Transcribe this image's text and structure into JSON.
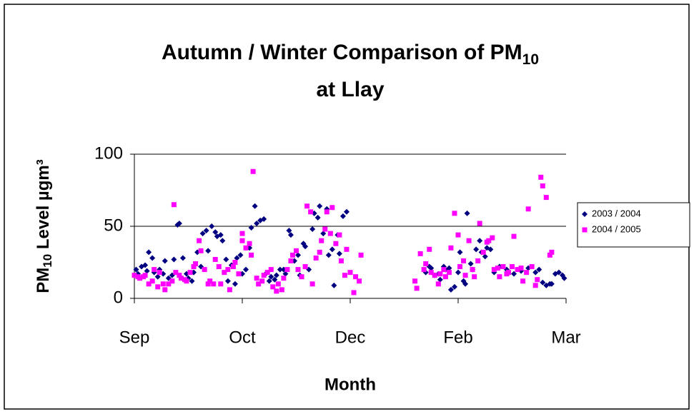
{
  "chart_data": {
    "type": "scatter",
    "title": {
      "text": "Autumn / Winter Comparison of PM",
      "subscript": "10",
      "line2": "at Llay"
    },
    "ylabel": {
      "text": "PM",
      "subscript": "10",
      "rest": " Level µgm³"
    },
    "xlabel": "Month",
    "xlim": [
      0,
      240
    ],
    "xticks": [
      {
        "value": 0,
        "label": "Sep"
      },
      {
        "value": 60,
        "label": "Oct"
      },
      {
        "value": 120,
        "label": "Dec"
      },
      {
        "value": 180,
        "label": "Feb"
      },
      {
        "value": 240,
        "label": "Mar"
      }
    ],
    "ylim": [
      0,
      100
    ],
    "yticks": [
      0,
      50,
      100
    ],
    "grid": true,
    "legend": "right",
    "series": [
      {
        "name": "2003 / 2004",
        "color": "#000080",
        "marker": "diamond",
        "x": [
          1,
          2,
          4,
          6,
          7,
          8,
          10,
          11,
          13,
          14,
          16,
          17,
          19,
          21,
          22,
          24,
          25,
          27,
          29,
          30,
          32,
          33,
          35,
          37,
          38,
          40,
          41,
          43,
          45,
          46,
          48,
          49,
          51,
          52,
          54,
          56,
          57,
          59,
          60,
          62,
          64,
          65,
          67,
          68,
          70,
          72,
          73,
          75,
          76,
          78,
          79,
          81,
          83,
          84,
          86,
          87,
          89,
          91,
          92,
          94,
          95,
          97,
          99,
          100,
          102,
          103,
          105,
          107,
          108,
          110,
          111,
          113,
          114,
          116,
          118,
          162,
          164,
          165,
          167,
          169,
          170,
          172,
          173,
          175,
          176,
          178,
          180,
          181,
          183,
          184,
          185,
          187,
          188,
          190,
          192,
          193,
          195,
          196,
          198,
          200,
          203,
          207,
          211,
          215,
          219,
          223,
          225,
          227,
          229,
          231,
          232,
          234,
          236,
          238,
          239
        ],
        "values": [
          20,
          17,
          22,
          23,
          19,
          32,
          28,
          18,
          15,
          20,
          17,
          26,
          14,
          16,
          27,
          51,
          52,
          28,
          17,
          14,
          12,
          18,
          32,
          22,
          45,
          47,
          33,
          50,
          46,
          43,
          44,
          40,
          27,
          12,
          23,
          10,
          28,
          30,
          17,
          20,
          35,
          49,
          64,
          52,
          54,
          55,
          17,
          12,
          15,
          13,
          16,
          20,
          20,
          17,
          47,
          44,
          26,
          30,
          16,
          38,
          36,
          20,
          48,
          59,
          56,
          64,
          45,
          62,
          30,
          34,
          9,
          44,
          31,
          57,
          60,
          18,
          22,
          21,
          16,
          17,
          13,
          22,
          20,
          21,
          6,
          8,
          18,
          32,
          12,
          10,
          59,
          24,
          20,
          34,
          40,
          32,
          29,
          35,
          34,
          18,
          22,
          20,
          17,
          19,
          21,
          18,
          20,
          11,
          9,
          10,
          10,
          17,
          18,
          16,
          14
        ]
      },
      {
        "name": "2004 / 2005",
        "color": "#ff00ff",
        "marker": "square",
        "x": [
          0,
          2,
          3,
          5,
          6,
          8,
          10,
          11,
          13,
          14,
          16,
          17,
          19,
          21,
          22,
          23,
          25,
          26,
          28,
          29,
          31,
          33,
          34,
          36,
          37,
          39,
          41,
          42,
          44,
          45,
          47,
          48,
          50,
          52,
          53,
          55,
          56,
          58,
          60,
          60,
          62,
          64,
          65,
          66,
          68,
          69,
          71,
          72,
          74,
          76,
          77,
          79,
          80,
          82,
          83,
          85,
          87,
          88,
          90,
          91,
          93,
          95,
          96,
          98,
          99,
          101,
          103,
          104,
          106,
          107,
          109,
          110,
          112,
          114,
          115,
          117,
          118,
          120,
          122,
          123,
          125,
          126,
          156,
          157,
          159,
          161,
          162,
          164,
          165,
          167,
          169,
          170,
          172,
          173,
          175,
          176,
          178,
          180,
          181,
          183,
          184,
          186,
          188,
          189,
          191,
          192,
          194,
          196,
          197,
          199,
          200,
          202,
          203,
          205,
          207,
          208,
          210,
          211,
          213,
          215,
          216,
          218,
          219,
          221,
          223,
          224,
          226,
          227,
          229,
          231,
          232
        ],
        "values": [
          16,
          15,
          14,
          15,
          16,
          10,
          12,
          20,
          8,
          18,
          10,
          6,
          10,
          12,
          65,
          18,
          16,
          14,
          13,
          12,
          18,
          22,
          24,
          40,
          33,
          20,
          10,
          12,
          10,
          27,
          22,
          10,
          18,
          20,
          6,
          22,
          25,
          17,
          40,
          45,
          35,
          38,
          30,
          88,
          14,
          10,
          12,
          16,
          18,
          20,
          8,
          5,
          10,
          6,
          14,
          20,
          26,
          30,
          33,
          20,
          15,
          22,
          64,
          60,
          10,
          28,
          32,
          40,
          48,
          60,
          45,
          63,
          38,
          44,
          26,
          16,
          34,
          18,
          4,
          15,
          12,
          30,
          12,
          7,
          31,
          20,
          24,
          34,
          18,
          16,
          10,
          17,
          20,
          15,
          18,
          35,
          59,
          44,
          22,
          26,
          16,
          40,
          20,
          15,
          26,
          52,
          32,
          39,
          40,
          42,
          20,
          21,
          15,
          22,
          17,
          18,
          22,
          43,
          20,
          21,
          12,
          18,
          62,
          22,
          9,
          13,
          84,
          78,
          70,
          30,
          32
        ]
      }
    ]
  }
}
